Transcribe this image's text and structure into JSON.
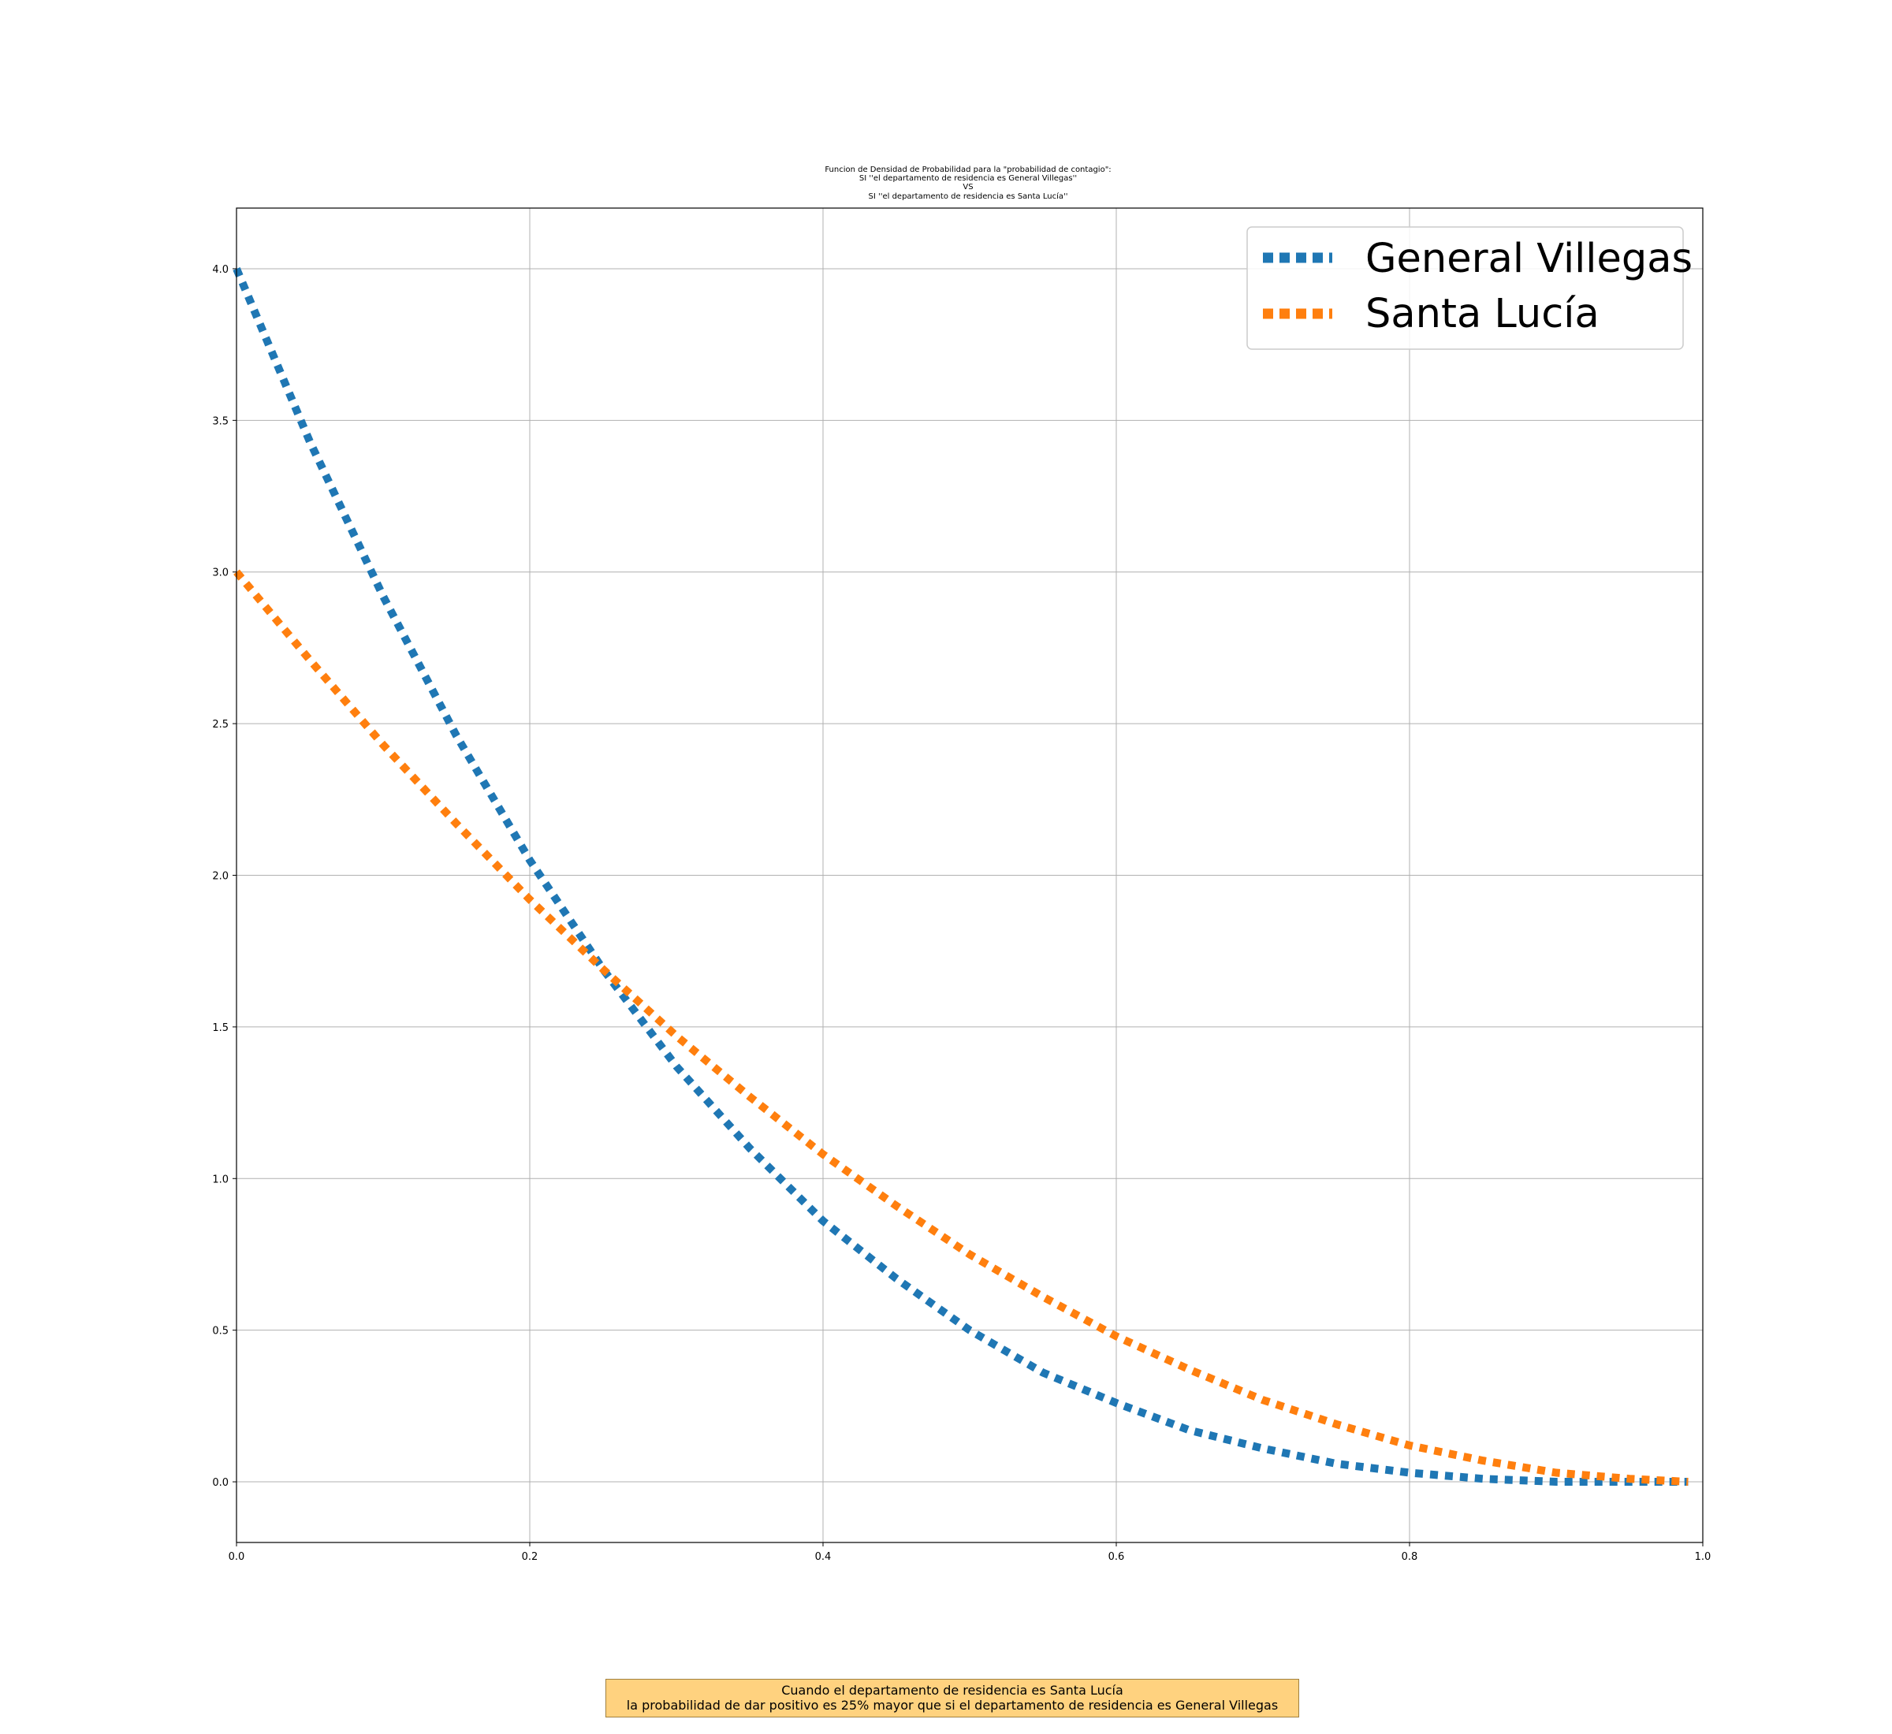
{
  "chart_data": {
    "type": "line",
    "title_lines": [
      "Funcion de Densidad de Probabilidad para la \"probabilidad de contagio\":",
      "SI ''el departamento de residencia es General Villegas''",
      "VS",
      "SI ''el departamento de residencia es Santa Lucía''"
    ],
    "xlabel": "",
    "ylabel": "",
    "xlim": [
      0.0,
      1.0
    ],
    "ylim": [
      -0.2,
      4.2
    ],
    "x_ticks": [
      "0.0",
      "0.2",
      "0.4",
      "0.6",
      "0.8",
      "1.0"
    ],
    "y_ticks": [
      "0.0",
      "0.5",
      "1.0",
      "1.5",
      "2.0",
      "2.5",
      "3.0",
      "3.5",
      "4.0"
    ],
    "grid": true,
    "legend_position": "upper-right",
    "x": [
      0.0,
      0.05,
      0.1,
      0.15,
      0.2,
      0.25,
      0.3,
      0.35,
      0.4,
      0.45,
      0.5,
      0.55,
      0.6,
      0.65,
      0.7,
      0.75,
      0.8,
      0.85,
      0.9,
      0.95,
      0.99
    ],
    "series": [
      {
        "name": "General Villegas",
        "color": "#1f77b4",
        "style": "dotted",
        "values": [
          4.0,
          3.43,
          2.92,
          2.46,
          2.05,
          1.69,
          1.37,
          1.1,
          0.86,
          0.67,
          0.5,
          0.36,
          0.26,
          0.17,
          0.11,
          0.06,
          0.03,
          0.01,
          0.0,
          0.0,
          0.0
        ]
      },
      {
        "name": "Santa Lucía",
        "color": "#ff7f0e",
        "style": "dotted",
        "values": [
          3.0,
          2.71,
          2.43,
          2.17,
          1.92,
          1.69,
          1.47,
          1.27,
          1.08,
          0.91,
          0.75,
          0.61,
          0.48,
          0.37,
          0.27,
          0.19,
          0.12,
          0.07,
          0.03,
          0.01,
          0.0
        ]
      }
    ]
  },
  "note": {
    "line1": "Cuando el departamento de residencia es Santa Lucía",
    "line2": "la probabilidad de dar positivo es 25% mayor que si el departamento de residencia es General Villegas"
  }
}
